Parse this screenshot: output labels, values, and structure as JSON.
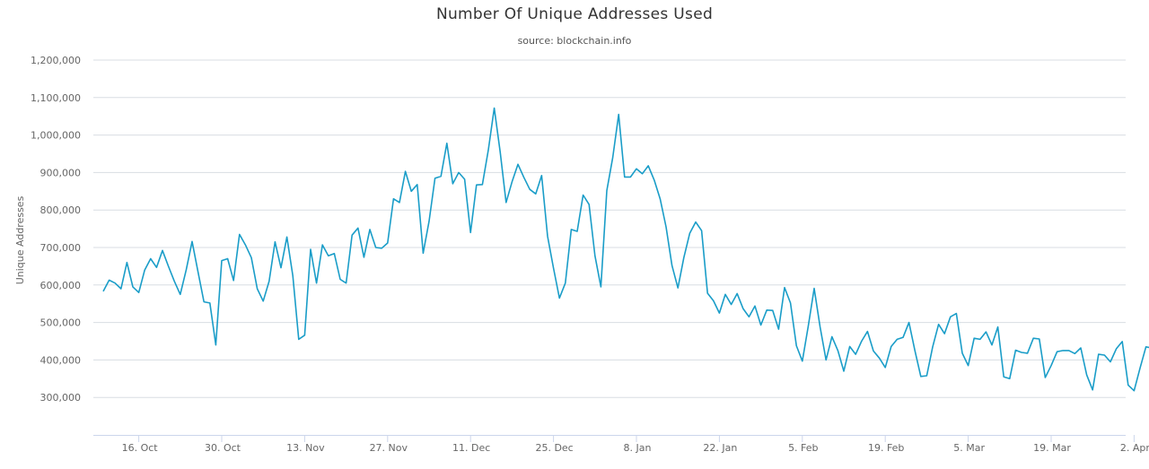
{
  "chart_data": {
    "type": "line",
    "title": "Number Of Unique Addresses Used",
    "subtitle": "source: blockchain.info",
    "ylabel": "Unique Addresses",
    "xlabel": "",
    "ylim": [
      200000,
      1200000
    ],
    "y_ticks": [
      300000,
      400000,
      500000,
      600000,
      700000,
      800000,
      900000,
      1000000,
      1100000,
      1200000
    ],
    "y_tick_labels": [
      "300,000",
      "400,000",
      "500,000",
      "600,000",
      "700,000",
      "800,000",
      "900,000",
      "1,000,000",
      "1,100,000",
      "1,200,000"
    ],
    "x_start_date": "2017-10-10",
    "x_ticks": [
      {
        "label": "16. Oct",
        "date": "2017-10-16"
      },
      {
        "label": "30. Oct",
        "date": "2017-10-30"
      },
      {
        "label": "13. Nov",
        "date": "2017-11-13"
      },
      {
        "label": "27. Nov",
        "date": "2017-11-27"
      },
      {
        "label": "11. Dec",
        "date": "2017-12-11"
      },
      {
        "label": "25. Dec",
        "date": "2017-12-25"
      },
      {
        "label": "8. Jan",
        "date": "2018-01-08"
      },
      {
        "label": "22. Jan",
        "date": "2018-01-22"
      },
      {
        "label": "5. Feb",
        "date": "2018-02-05"
      },
      {
        "label": "19. Feb",
        "date": "2018-02-19"
      },
      {
        "label": "5. Mar",
        "date": "2018-03-05"
      },
      {
        "label": "19. Mar",
        "date": "2018-03-19"
      },
      {
        "label": "2. Apr",
        "date": "2018-04-02"
      }
    ],
    "grid": true,
    "legend": "none",
    "line_color": "#1a9dc8",
    "series": [
      {
        "x_start": "2017-10-10",
        "x_step_days": 1,
        "values": [
          583000,
          613000,
          605000,
          590000,
          660000,
          595000,
          580000,
          640000,
          670000,
          647000,
          692000,
          650000,
          610000,
          575000,
          640000,
          716000,
          635000,
          555000,
          552000,
          440000,
          665000,
          670000,
          612000,
          735000,
          707000,
          673000,
          590000,
          557000,
          610000,
          715000,
          646000,
          728000,
          625000,
          455000,
          466000,
          695000,
          605000,
          707000,
          678000,
          684000,
          615000,
          605000,
          733000,
          752000,
          674000,
          748000,
          700000,
          698000,
          712000,
          830000,
          820000,
          903000,
          850000,
          868000,
          685000,
          770000,
          885000,
          890000,
          978000,
          870000,
          900000,
          882000,
          740000,
          867000,
          868000,
          960000,
          1072000,
          955000,
          820000,
          875000,
          922000,
          887000,
          855000,
          843000,
          892000,
          730000,
          645000,
          565000,
          605000,
          748000,
          743000,
          840000,
          815000,
          678000,
          595000,
          852000,
          940000,
          1055000,
          888000,
          888000,
          910000,
          897000,
          918000,
          880000,
          830000,
          755000,
          652000,
          592000,
          673000,
          738000,
          768000,
          745000,
          578000,
          558000,
          525000,
          575000,
          548000,
          577000,
          537000,
          515000,
          544000,
          493000,
          533000,
          532000,
          482000,
          593000,
          552000,
          438000,
          397000,
          490000,
          591000,
          488000,
          400000,
          462000,
          425000,
          370000,
          436000,
          415000,
          450000,
          476000,
          424000,
          405000,
          380000,
          436000,
          455000,
          460000,
          500000,
          425000,
          356000,
          358000,
          435000,
          495000,
          470000,
          515000,
          524000,
          418000,
          385000,
          458000,
          455000,
          475000,
          440000,
          488000,
          355000,
          350000,
          426000,
          420000,
          418000,
          458000,
          456000,
          353000,
          385000,
          422000,
          425000,
          425000,
          417000,
          432000,
          360000,
          320000,
          415000,
          413000,
          395000,
          430000,
          449000,
          333000,
          318000,
          378000,
          435000,
          432000,
          396000
        ]
      }
    ]
  }
}
